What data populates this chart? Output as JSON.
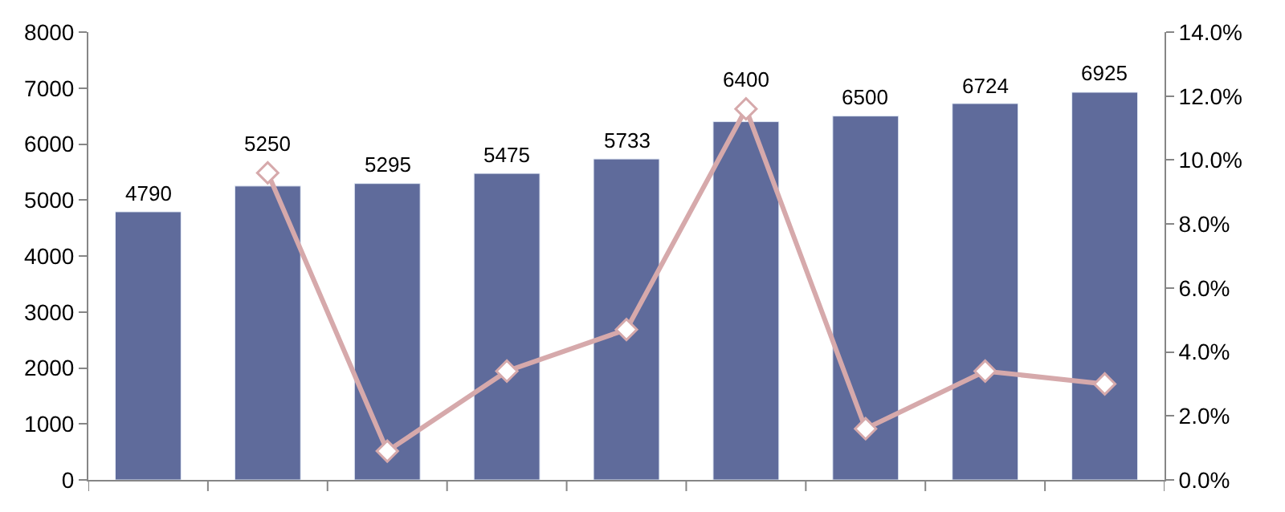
{
  "chart_data": {
    "type": "bar",
    "categories": [
      null,
      null,
      null,
      null,
      null,
      null,
      null,
      null,
      null
    ],
    "series": [
      {
        "color": "#5f6b9b",
        "values": [
          4790,
          5250,
          5295,
          5475,
          5733,
          6400,
          6500,
          6724,
          6925
        ],
        "value_labels": [
          "4790",
          "5250",
          "5295",
          "5475",
          "5733",
          "6400",
          "6500",
          "6724",
          "6925"
        ]
      },
      {
        "type": "line",
        "axis": "y2",
        "color": "#d6a9ab",
        "marker": "diamond",
        "values": [
          null,
          9.6,
          0.9,
          3.4,
          4.7,
          11.6,
          1.6,
          3.4,
          3.0
        ]
      }
    ],
    "ylim": [
      0,
      8000
    ],
    "yticks": [
      0,
      1000,
      2000,
      3000,
      4000,
      5000,
      6000,
      7000,
      8000
    ],
    "y2lim": [
      0,
      14
    ],
    "y2ticks": [
      {
        "value": 0,
        "label": "0.0%"
      },
      {
        "value": 2,
        "label": "2.0%"
      },
      {
        "value": 4,
        "label": "4.0%"
      },
      {
        "value": 6,
        "label": "6.0%"
      },
      {
        "value": 8,
        "label": "8.0%"
      },
      {
        "value": 10,
        "label": "10.0%"
      },
      {
        "value": 12,
        "label": "12.0%"
      },
      {
        "value": 14,
        "label": "14.0%"
      }
    ],
    "tick_labels": "y"
  }
}
